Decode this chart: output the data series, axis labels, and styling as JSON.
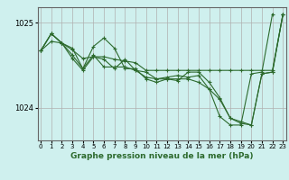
{
  "title": "Graphe pression niveau de la mer (hPa)",
  "background_color": "#cff0ee",
  "grid_color": "#b0b0b0",
  "line_color": "#2d6a2d",
  "x_ticks": [
    0,
    1,
    2,
    3,
    4,
    5,
    6,
    7,
    8,
    9,
    10,
    11,
    12,
    13,
    14,
    15,
    16,
    17,
    18,
    19,
    20,
    21,
    22,
    23
  ],
  "y_ticks": [
    1024,
    1025
  ],
  "ylim": [
    1023.62,
    1025.18
  ],
  "xlim": [
    -0.3,
    23.3
  ],
  "series": [
    [
      1024.67,
      1024.78,
      1024.76,
      1024.68,
      1024.58,
      1024.6,
      1024.6,
      1024.57,
      1024.55,
      1024.53,
      1024.44,
      1024.44,
      1024.44,
      1024.44,
      1024.44,
      1024.44,
      1024.44,
      1024.44,
      1024.44,
      1024.44,
      1024.44,
      1024.44,
      1024.44,
      1025.1
    ],
    [
      1024.67,
      1024.87,
      1024.76,
      1024.58,
      1024.44,
      1024.6,
      1024.57,
      1024.46,
      1024.57,
      1024.44,
      1024.36,
      1024.34,
      1024.36,
      1024.38,
      1024.36,
      1024.38,
      1024.22,
      1023.9,
      1023.8,
      1023.8,
      1024.4,
      1024.42,
      1025.1,
      null
    ],
    [
      1024.67,
      1024.87,
      1024.76,
      1024.62,
      1024.46,
      1024.72,
      1024.82,
      1024.7,
      1024.46,
      1024.46,
      1024.34,
      1024.3,
      1024.34,
      1024.34,
      1024.34,
      1024.3,
      1024.22,
      1024.1,
      1023.88,
      1023.82,
      1023.8,
      1024.4,
      1024.42,
      1025.1
    ],
    [
      1024.67,
      1024.87,
      1024.76,
      1024.7,
      1024.46,
      1024.62,
      1024.48,
      1024.48,
      1024.48,
      1024.44,
      1024.42,
      1024.34,
      1024.34,
      1024.32,
      1024.42,
      1024.42,
      1024.3,
      1024.12,
      1023.88,
      1023.84,
      1023.8,
      1024.4,
      1024.42,
      1025.1
    ]
  ]
}
